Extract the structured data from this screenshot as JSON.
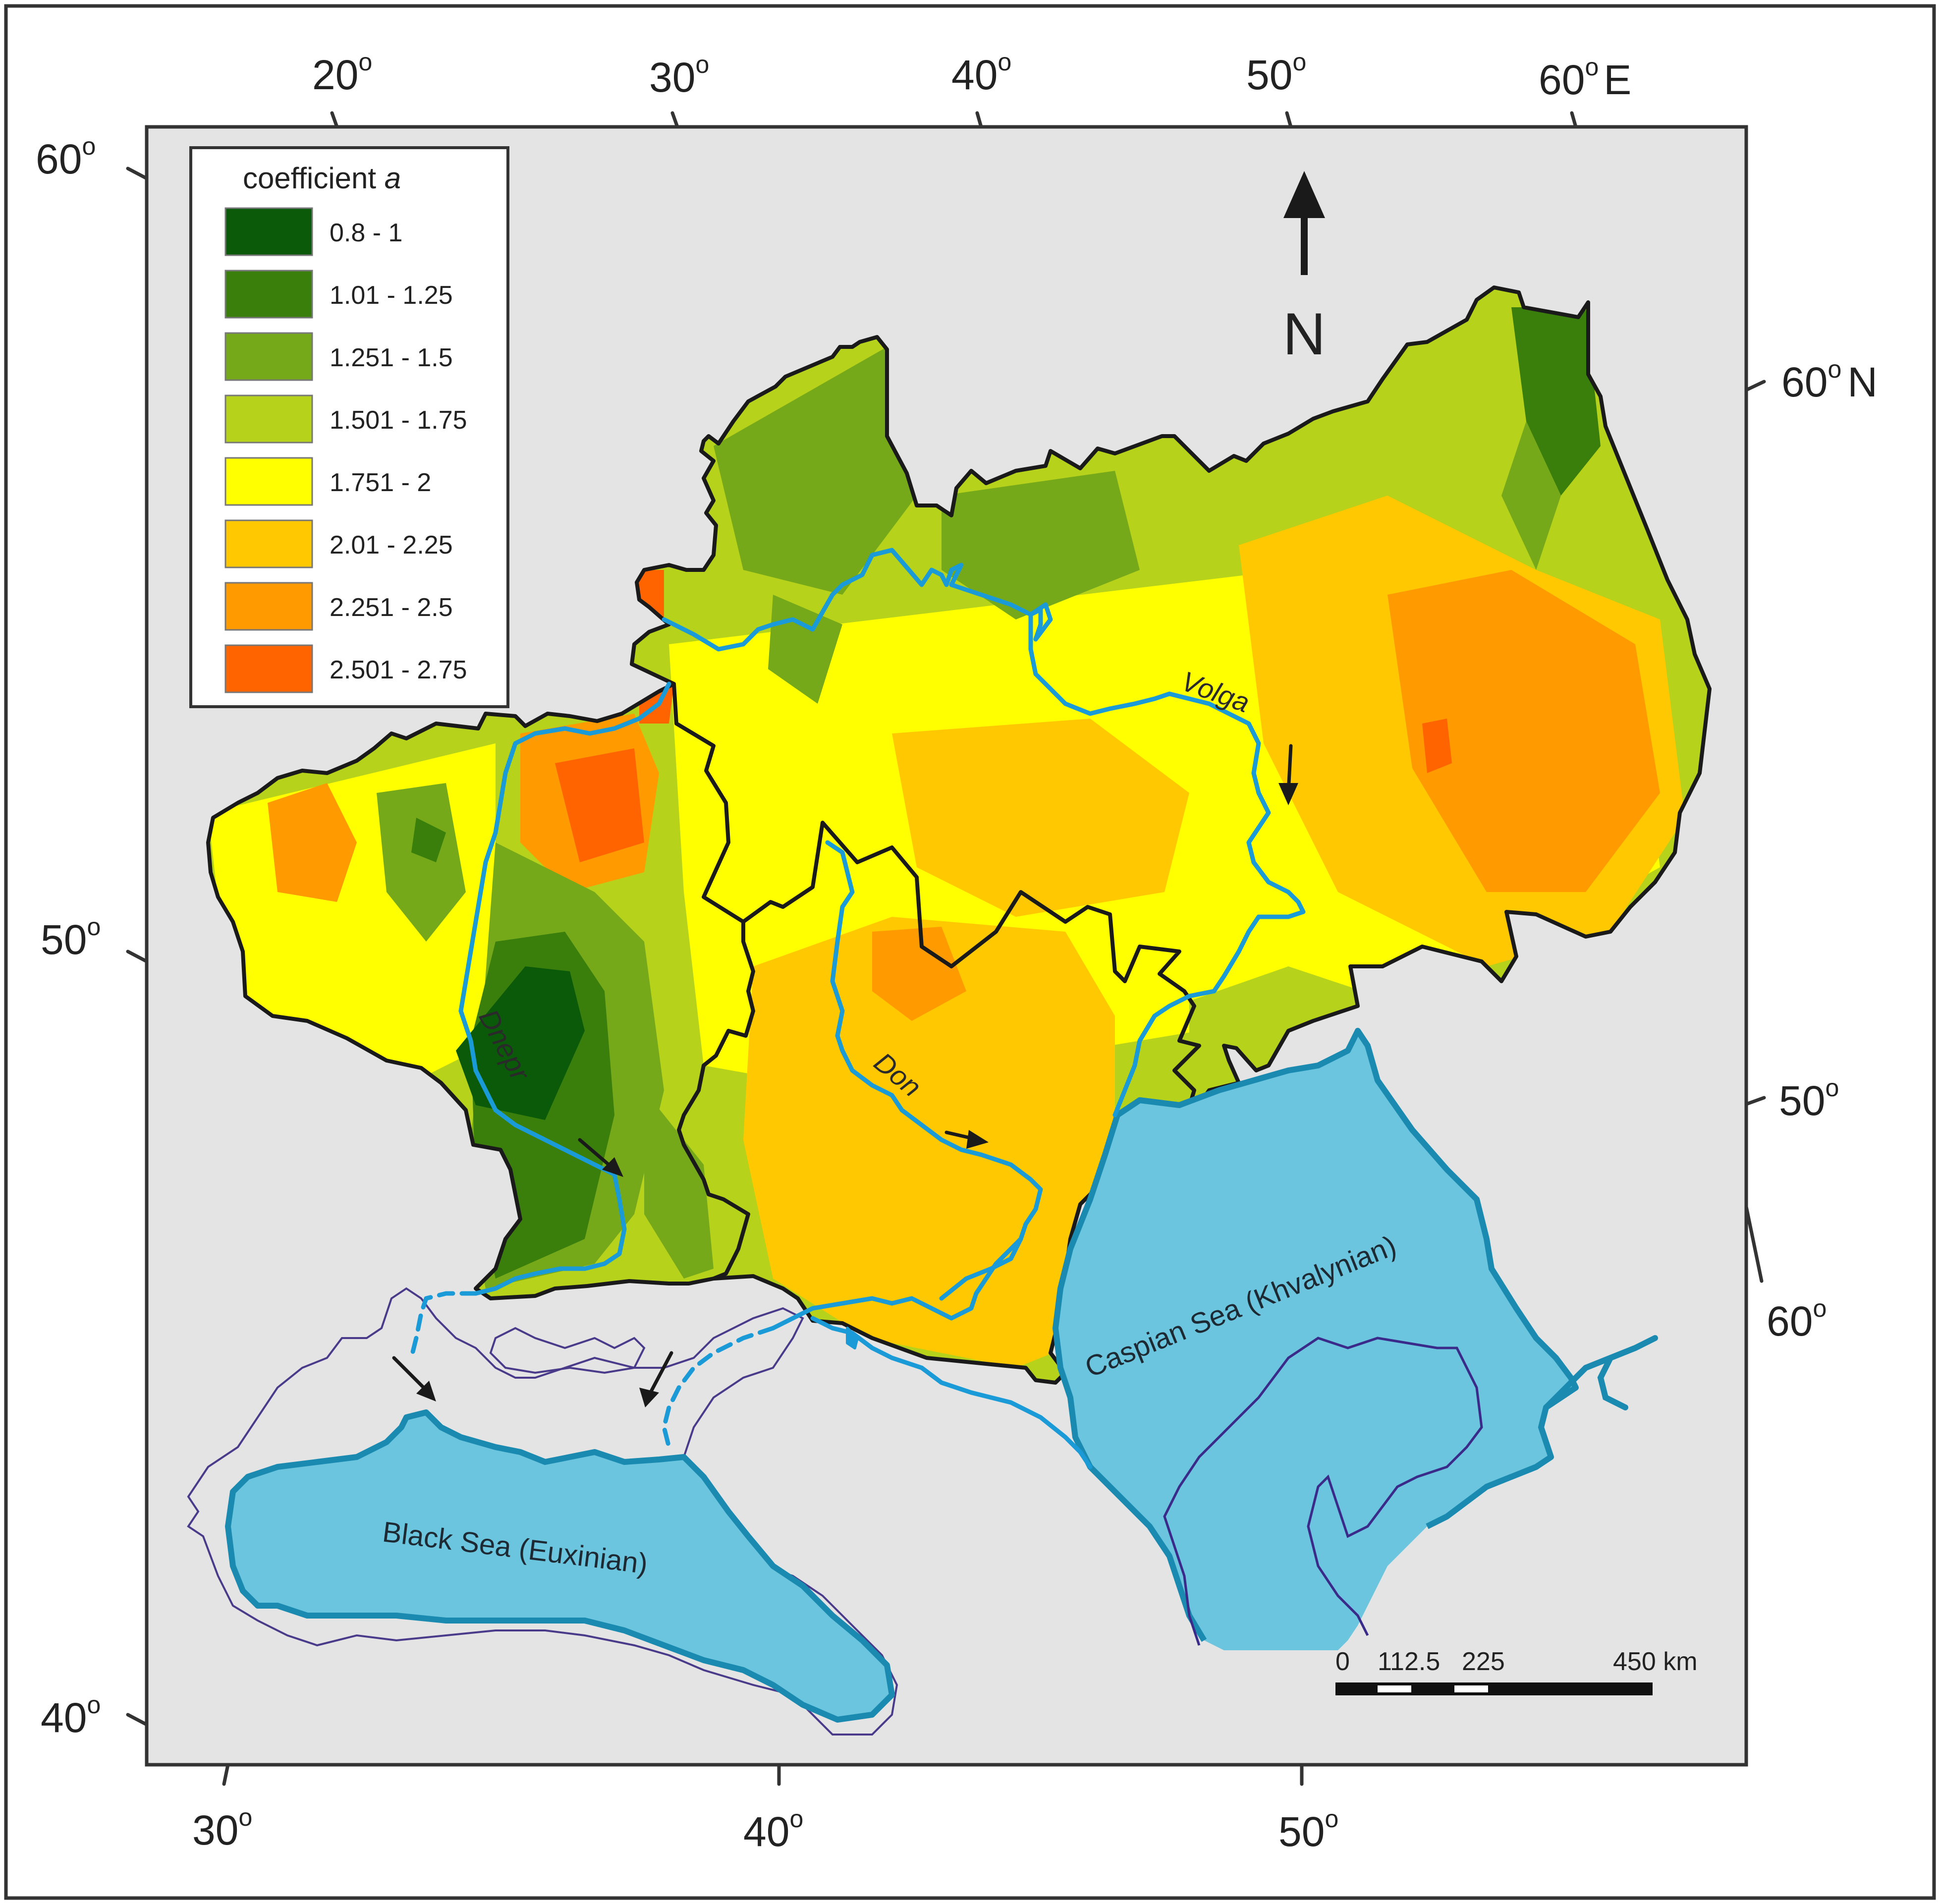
{
  "figure": {
    "background_color": "#e4e4e4",
    "border_color": "#333333"
  },
  "top_axis": {
    "ticks": [
      "20",
      "30",
      "40",
      "50",
      "60"
    ],
    "unit_suffix": "E"
  },
  "bottom_axis": {
    "ticks": [
      "30",
      "40",
      "50"
    ]
  },
  "left_axis": {
    "ticks": [
      "60",
      "50",
      "40"
    ]
  },
  "right_axis": {
    "ticks": [
      "60",
      "50",
      "60"
    ],
    "unit_suffix": "N"
  },
  "degree_symbol": "o",
  "legend": {
    "title": "coefficient",
    "title_var": "a",
    "items": [
      {
        "label": "0.8 - 1",
        "color": "#0a5a0a"
      },
      {
        "label": "1.01 - 1.25",
        "color": "#3a7f0c"
      },
      {
        "label": "1.251 - 1.5",
        "color": "#76a91a"
      },
      {
        "label": "1.501 - 1.75",
        "color": "#b6d21a"
      },
      {
        "label": "1.751 - 2",
        "color": "#ffff00"
      },
      {
        "label": "2.01 - 2.25",
        "color": "#ffc800"
      },
      {
        "label": "2.251 - 2.5",
        "color": "#ff9a00"
      },
      {
        "label": "2.501 - 2.75",
        "color": "#ff6400"
      }
    ]
  },
  "north_arrow": {
    "label": "N"
  },
  "rivers": [
    {
      "name": "Volga"
    },
    {
      "name": "Don"
    },
    {
      "name": "Dnepr"
    }
  ],
  "seas": [
    {
      "name": "Black Sea (Euxinian)",
      "color": "#6cc5de"
    },
    {
      "name": "Caspian Sea (Khvalynian)",
      "color": "#6cc5de"
    }
  ],
  "river_color": "#1a9bd7",
  "scale_bar": {
    "labels": [
      "0",
      "112.5",
      "225",
      "450 km"
    ]
  }
}
